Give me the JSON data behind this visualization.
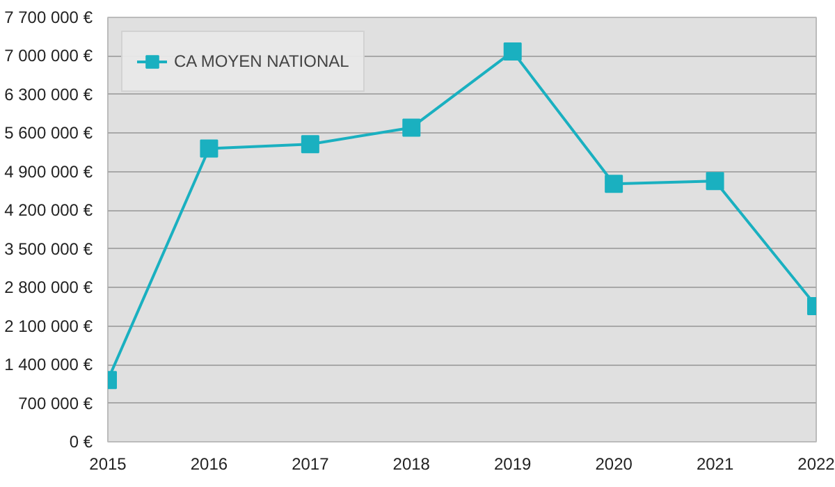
{
  "chart_data": {
    "type": "line",
    "x": [
      2015,
      2016,
      2017,
      2018,
      2019,
      2020,
      2021,
      2022
    ],
    "xlim": [
      2015,
      2022
    ],
    "xticks": [
      2015,
      2016,
      2017,
      2018,
      2019,
      2020,
      2021,
      2022
    ],
    "ylim": [
      0,
      7700000
    ],
    "yticks": [
      {
        "value": 0,
        "label": "0 €"
      },
      {
        "value": 700000,
        "label": "700 000 €"
      },
      {
        "value": 1400000,
        "label": "1 400 000 €"
      },
      {
        "value": 2100000,
        "label": "2 100 000 €"
      },
      {
        "value": 2800000,
        "label": "2 800 000 €"
      },
      {
        "value": 3500000,
        "label": "3 500 000 €"
      },
      {
        "value": 4200000,
        "label": "4 200 000 €"
      },
      {
        "value": 4900000,
        "label": "4 900 000 €"
      },
      {
        "value": 5600000,
        "label": "5 600 000 €"
      },
      {
        "value": 6300000,
        "label": "6 300 000 €"
      },
      {
        "value": 7000000,
        "label": "7 000 000 €"
      },
      {
        "value": 7700000,
        "label": "7 700 000 €"
      }
    ],
    "series": [
      {
        "name": "CA MOYEN NATIONAL",
        "color": "#1ab0c0",
        "values": [
          1120000,
          5320000,
          5400000,
          5700000,
          7080000,
          4680000,
          4730000,
          2460000
        ]
      }
    ],
    "grid": "y",
    "legend": "top left",
    "marker": "square",
    "line_style": "solid"
  }
}
